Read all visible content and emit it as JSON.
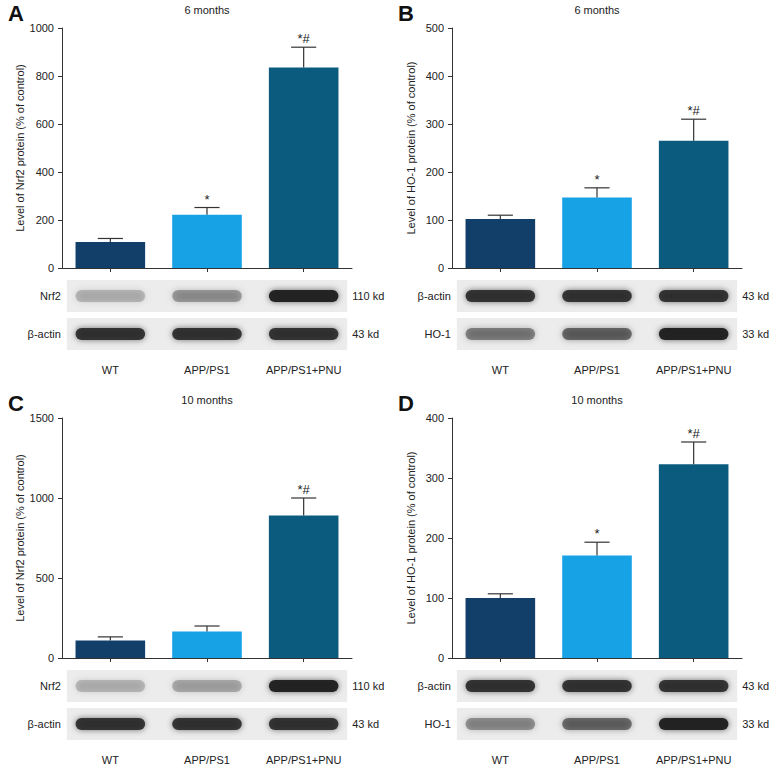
{
  "chart_data": [
    {
      "type": "bar",
      "panel": "A",
      "title": "6 months",
      "y_label": "Level of Nrf2 protein (% of control)",
      "categories": [
        "WT",
        "APP/PS1",
        "APP/PS1+PNU"
      ],
      "values": [
        108,
        222,
        835
      ],
      "errors": [
        15,
        30,
        85
      ],
      "annotations": [
        null,
        "*",
        "*#"
      ],
      "colors": [
        "#123e6a",
        "#17a2e6",
        "#0b5b7e"
      ],
      "ylim": [
        0,
        1000
      ],
      "yticks": [
        0,
        200,
        400,
        600,
        800,
        1000
      ],
      "grid": false,
      "tick_labels": "y",
      "blots": [
        {
          "label": "Nrf2",
          "size": "110 kd"
        },
        {
          "label": "β-actin",
          "size": "43 kd"
        }
      ]
    },
    {
      "type": "bar",
      "panel": "B",
      "title": "6 months",
      "y_label": "Level of HO-1 protein (% of control)",
      "categories": [
        "WT",
        "APP/PS1",
        "APP/PS1+PNU"
      ],
      "values": [
        102,
        147,
        265
      ],
      "errors": [
        8,
        20,
        45
      ],
      "annotations": [
        null,
        "*",
        "*#"
      ],
      "colors": [
        "#123e6a",
        "#17a2e6",
        "#0b5b7e"
      ],
      "ylim": [
        0,
        500
      ],
      "yticks": [
        0,
        100,
        200,
        300,
        400,
        500
      ],
      "grid": false,
      "tick_labels": "y",
      "blots": [
        {
          "label": "β-actin",
          "size": "43 kd"
        },
        {
          "label": "HO-1",
          "size": "33 kd"
        }
      ]
    },
    {
      "type": "bar",
      "panel": "C",
      "title": "10 months",
      "y_label": "Level of Nrf2 protein (% of control)",
      "categories": [
        "WT",
        "APP/PS1",
        "APP/PS1+PNU"
      ],
      "values": [
        110,
        165,
        890
      ],
      "errors": [
        22,
        35,
        110
      ],
      "annotations": [
        null,
        null,
        "*#"
      ],
      "colors": [
        "#123e6a",
        "#17a2e6",
        "#0b5b7e"
      ],
      "ylim": [
        0,
        1500
      ],
      "yticks": [
        0,
        500,
        1000,
        1500
      ],
      "grid": false,
      "tick_labels": "y",
      "blots": [
        {
          "label": "Nrf2",
          "size": "110 kd"
        },
        {
          "label": "β-actin",
          "size": "43 kd"
        }
      ]
    },
    {
      "type": "bar",
      "panel": "D",
      "title": "10 months",
      "y_label": "Level of HO-1 protein (% of control)",
      "categories": [
        "WT",
        "APP/PS1",
        "APP/PS1+PNU"
      ],
      "values": [
        100,
        171,
        323
      ],
      "errors": [
        7,
        22,
        37
      ],
      "annotations": [
        null,
        "*",
        "*#"
      ],
      "colors": [
        "#123e6a",
        "#17a2e6",
        "#0b5b7e"
      ],
      "ylim": [
        0,
        400
      ],
      "yticks": [
        0,
        100,
        200,
        300,
        400
      ],
      "grid": false,
      "tick_labels": "y",
      "blots": [
        {
          "label": "β-actin",
          "size": "43 kd"
        },
        {
          "label": "HO-1",
          "size": "33 kd"
        }
      ]
    }
  ]
}
